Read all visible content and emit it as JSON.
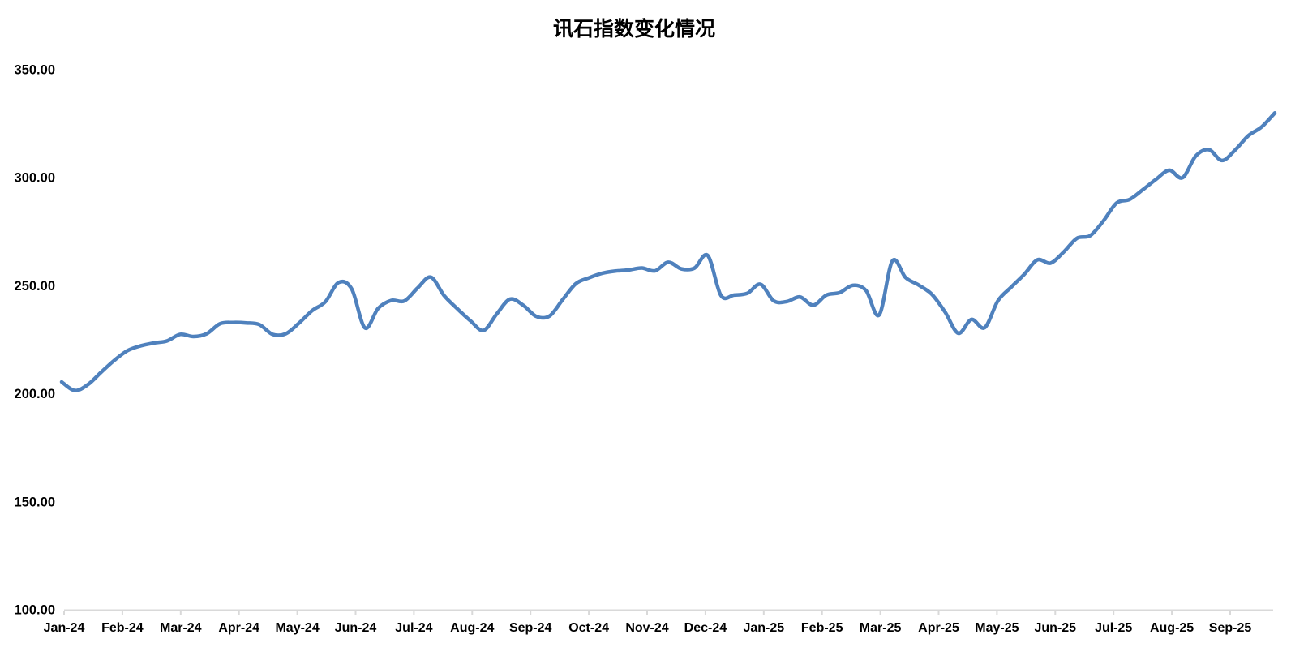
{
  "title": "讯石指数变化情况",
  "chart_data": {
    "type": "line",
    "title": "讯石指数变化情况",
    "frequency": "weekly",
    "categories": [
      "Jan-24",
      "Feb-24",
      "Mar-24",
      "Apr-24",
      "May-24",
      "Jun-24",
      "Jul-24",
      "Aug-24",
      "Sep-24",
      "Oct-24",
      "Nov-24",
      "Dec-24",
      "Jan-25",
      "Feb-25",
      "Mar-25",
      "Apr-25",
      "May-25",
      "Jun-25",
      "Jul-25",
      "Aug-25",
      "Sep-25"
    ],
    "values": [
      205.5,
      201.5,
      204.3,
      210.0,
      215.5,
      220.0,
      222.2,
      223.5,
      224.5,
      227.5,
      226.5,
      227.8,
      232.4,
      233.0,
      232.8,
      232.0,
      227.5,
      227.8,
      232.7,
      238.5,
      242.6,
      251.5,
      248.5,
      230.5,
      239.5,
      243.2,
      243.0,
      249.0,
      254.0,
      245.5,
      239.4,
      233.8,
      229.3,
      237.0,
      243.8,
      241.0,
      235.8,
      236.0,
      243.6,
      251.0,
      253.7,
      255.8,
      256.8,
      257.3,
      258.2,
      256.9,
      260.9,
      257.8,
      258.2,
      264.0,
      245.5,
      245.7,
      246.5,
      250.7,
      243.0,
      242.7,
      244.8,
      241.0,
      245.7,
      246.8,
      250.2,
      247.8,
      236.5,
      261.5,
      253.8,
      250.3,
      246.0,
      237.8,
      228.0,
      234.4,
      230.6,
      243.0,
      249.3,
      255.3,
      262.0,
      260.5,
      265.7,
      272.0,
      273.2,
      280.0,
      288.3,
      290.0,
      294.5,
      299.3,
      303.5,
      300.0,
      310.0,
      313.0,
      308.0,
      312.9,
      319.5,
      323.5,
      330.0
    ],
    "y_tick_labels": [
      "350.00",
      "300.00",
      "250.00",
      "200.00",
      "150.00",
      "100.00"
    ],
    "ylim": [
      100,
      350
    ],
    "grid": false,
    "legend": false,
    "line_color": "#4F81BD",
    "axis_color": "#D9D9D9",
    "label_color": "#000000"
  }
}
